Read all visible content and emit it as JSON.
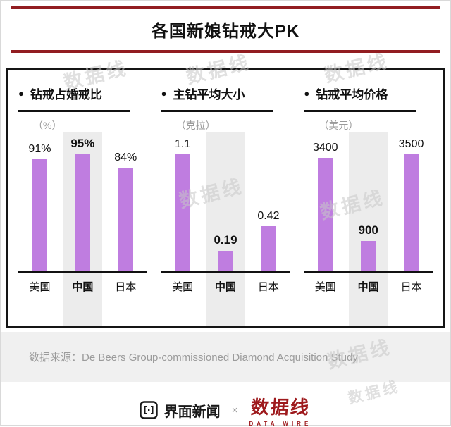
{
  "title": "各国新娘钻戒大PK",
  "bullet": "●",
  "watermark": "数据线",
  "source": {
    "label": "数据来源：",
    "text": "De Beers Group-commissioned Diamond Acquisition Study"
  },
  "footer": {
    "jiemian": "界面新闻",
    "multiply": "×",
    "datawire": "数据线",
    "datawire_sub": "DATA WIRE"
  },
  "colors": {
    "bar": "#bf7de0",
    "accent": "#921d21",
    "logo_red": "#9e1a1d",
    "highlight": "#ececec"
  },
  "chart_data": [
    {
      "type": "bar",
      "title": "钻戒占婚戒比",
      "unit": "（%）",
      "categories": [
        "美国",
        "中国",
        "日本"
      ],
      "values": [
        91,
        95,
        84
      ],
      "value_labels": [
        "91%",
        "95%",
        "84%"
      ],
      "highlight_index": 1,
      "ylim": [
        0,
        95
      ]
    },
    {
      "type": "bar",
      "title": "主钻平均大小",
      "unit": "（克拉）",
      "categories": [
        "美国",
        "中国",
        "日本"
      ],
      "values": [
        1.1,
        0.19,
        0.42
      ],
      "value_labels": [
        "1.1",
        "0.19",
        "0.42"
      ],
      "highlight_index": 1,
      "ylim": [
        0,
        1.1
      ]
    },
    {
      "type": "bar",
      "title": "钻戒平均价格",
      "unit": "（美元）",
      "categories": [
        "美国",
        "中国",
        "日本"
      ],
      "values": [
        3400,
        900,
        3500
      ],
      "value_labels": [
        "3400",
        "900",
        "3500"
      ],
      "highlight_index": 1,
      "ylim": [
        0,
        3500
      ]
    }
  ]
}
